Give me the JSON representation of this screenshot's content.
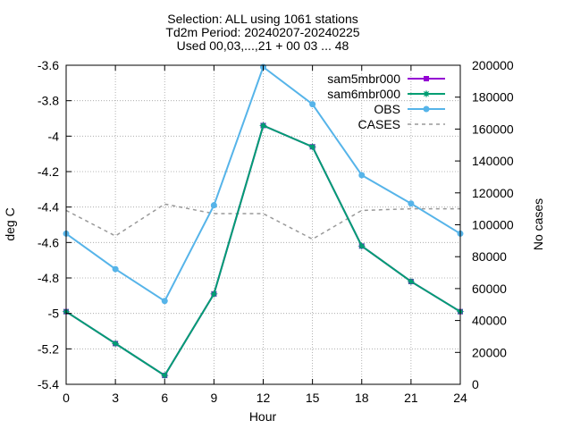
{
  "chart_data": {
    "type": "line",
    "title_lines": [
      "Selection: ALL using  1061 stations",
      "Td2m   Period: 20240207-20240225",
      "Used 00,03,...,21 + 00 03 ... 48"
    ],
    "xlabel": "Hour",
    "ylabel": "deg C",
    "y2label": "No cases",
    "x": [
      0,
      3,
      6,
      9,
      12,
      15,
      18,
      21,
      24
    ],
    "xlim": [
      0,
      24
    ],
    "ylim": [
      -5.4,
      -3.6
    ],
    "y2lim": [
      0,
      200000
    ],
    "x_ticks": [
      "0",
      "3",
      "6",
      "9",
      "12",
      "15",
      "18",
      "21",
      "24"
    ],
    "y_ticks": [
      "-3.6",
      "-3.8",
      "-4",
      "-4.2",
      "-4.4",
      "-4.6",
      "-4.8",
      "-5",
      "-5.2",
      "-5.4"
    ],
    "y2_ticks": [
      "200000",
      "180000",
      "160000",
      "140000",
      "120000",
      "100000",
      "80000",
      "60000",
      "40000",
      "20000",
      "0"
    ],
    "grid": true,
    "legend_position": "top-right",
    "series": [
      {
        "name": "sam5mbr000",
        "axis": "y",
        "color": "#9400d3",
        "marker": "square",
        "values": [
          -4.99,
          -5.17,
          -5.35,
          -4.89,
          -3.94,
          -4.06,
          -4.62,
          -4.82,
          -4.99
        ]
      },
      {
        "name": "sam6mbr000",
        "axis": "y",
        "color": "#009e73",
        "marker": "star",
        "values": [
          -4.99,
          -5.17,
          -5.35,
          -4.89,
          -3.94,
          -4.06,
          -4.62,
          -4.82,
          -4.99
        ]
      },
      {
        "name": "OBS",
        "axis": "y",
        "color": "#56b4e9",
        "marker": "circle",
        "values": [
          -4.55,
          -4.75,
          -4.93,
          -4.39,
          -3.61,
          -3.82,
          -4.22,
          -4.38,
          -4.55
        ]
      },
      {
        "name": "CASES",
        "axis": "y2",
        "color": "#999999",
        "dashed": true,
        "values": [
          109000,
          93000,
          113000,
          107000,
          107000,
          91000,
          109000,
          110000,
          110000
        ]
      }
    ]
  }
}
